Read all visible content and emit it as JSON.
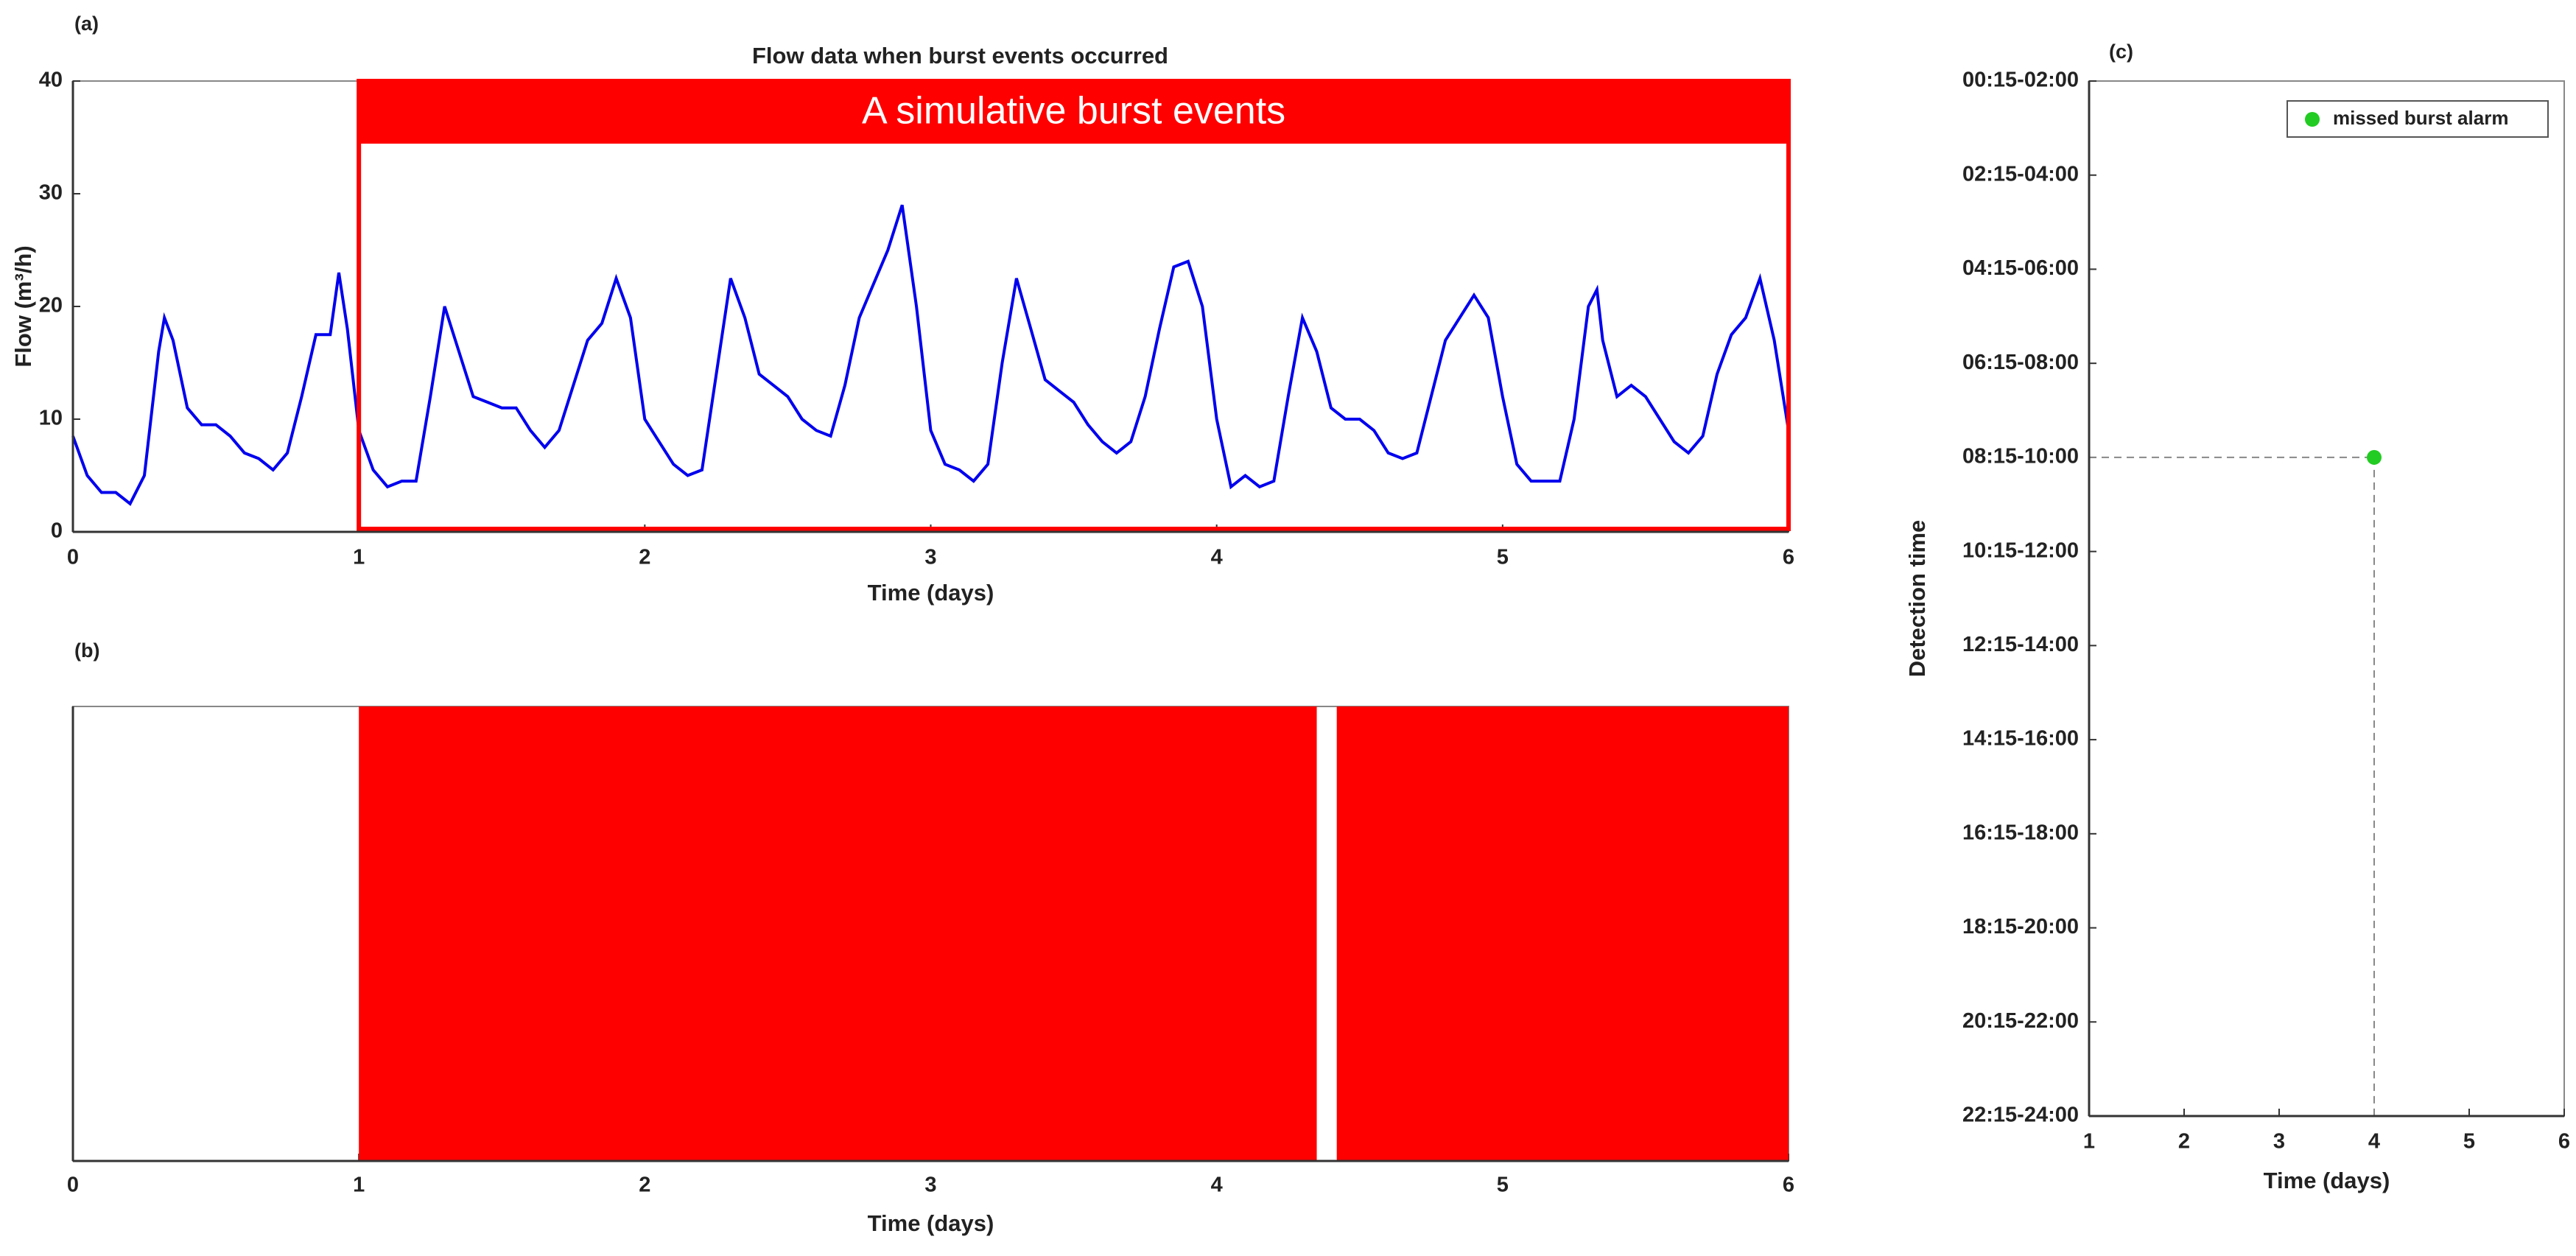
{
  "chart_data": [
    {
      "type": "line",
      "panel_label": "(a)",
      "title": "Flow data when burst events occurred",
      "x_label": "Time (days)",
      "y_label": "Flow (m³/h)",
      "color": "#0000ee",
      "x": [
        0,
        0.05,
        0.1,
        0.15,
        0.2,
        0.25,
        0.3,
        0.32,
        0.35,
        0.4,
        0.45,
        0.5,
        0.55,
        0.6,
        0.65,
        0.7,
        0.75,
        0.8,
        0.85,
        0.9,
        0.93,
        0.96,
        1.0,
        1.05,
        1.1,
        1.15,
        1.2,
        1.25,
        1.3,
        1.35,
        1.4,
        1.45,
        1.5,
        1.55,
        1.6,
        1.65,
        1.7,
        1.75,
        1.8,
        1.85,
        1.9,
        1.95,
        2.0,
        2.05,
        2.1,
        2.15,
        2.2,
        2.25,
        2.3,
        2.35,
        2.4,
        2.45,
        2.5,
        2.55,
        2.6,
        2.65,
        2.7,
        2.75,
        2.8,
        2.85,
        2.9,
        2.95,
        3.0,
        3.05,
        3.1,
        3.15,
        3.2,
        3.25,
        3.3,
        3.35,
        3.4,
        3.45,
        3.5,
        3.55,
        3.6,
        3.65,
        3.7,
        3.75,
        3.8,
        3.85,
        3.9,
        3.95,
        4.0,
        4.05,
        4.1,
        4.15,
        4.2,
        4.25,
        4.3,
        4.35,
        4.4,
        4.45,
        4.5,
        4.55,
        4.6,
        4.65,
        4.7,
        4.75,
        4.8,
        4.85,
        4.9,
        4.95,
        5.0,
        5.05,
        5.1,
        5.15,
        5.2,
        5.25,
        5.3,
        5.33,
        5.35,
        5.4,
        5.45,
        5.5,
        5.55,
        5.6,
        5.65,
        5.7,
        5.75,
        5.8,
        5.85,
        5.9,
        5.95,
        6.0
      ],
      "values": [
        8.5,
        5,
        3.5,
        3.5,
        2.5,
        5,
        16,
        19,
        17,
        11,
        9.5,
        9.5,
        8.5,
        7,
        6.5,
        5.5,
        7,
        12,
        17.5,
        17.5,
        23,
        18,
        9,
        5.5,
        4,
        4.5,
        4.5,
        12,
        20,
        16,
        12,
        11.5,
        11,
        11,
        9,
        7.5,
        9,
        13,
        17,
        18.5,
        22.5,
        19,
        10,
        8,
        6,
        5,
        5.5,
        14,
        22.5,
        19,
        14,
        13,
        12,
        10,
        9,
        8.5,
        13,
        19,
        22,
        25,
        29,
        20,
        9,
        6,
        5.5,
        4.5,
        6,
        15,
        22.5,
        18,
        13.5,
        12.5,
        11.5,
        9.5,
        8,
        7,
        8,
        12,
        18,
        23.5,
        24,
        20,
        10,
        4,
        5,
        4,
        4.5,
        12,
        19,
        16,
        11,
        10,
        10,
        9,
        7,
        6.5,
        7,
        12,
        17,
        19,
        21,
        19,
        12,
        6,
        4.5,
        4.5,
        4.5,
        10,
        20,
        21.5,
        17,
        12,
        13,
        12,
        10,
        8,
        7,
        8.5,
        14,
        17.5,
        19,
        22.5,
        17,
        9
      ],
      "xlim": [
        0,
        6
      ],
      "xticks": [
        0,
        1,
        2,
        3,
        4,
        5,
        6
      ],
      "ylim": [
        0,
        40
      ],
      "yticks": [
        0,
        10,
        20,
        30,
        40
      ],
      "highlight": {
        "label": "A simulative burst events",
        "x_range": [
          1,
          6
        ],
        "color": "#ff0000"
      }
    },
    {
      "type": "span",
      "panel_label": "(b)",
      "x_label": "Time (days)",
      "color": "#ff0000",
      "spans": [
        {
          "start": 1,
          "end": 4.35
        },
        {
          "start": 4.42,
          "end": 6
        }
      ],
      "xlim": [
        0,
        6
      ],
      "xticks": [
        0,
        1,
        2,
        3,
        4,
        5,
        6
      ]
    },
    {
      "type": "scatter",
      "panel_label": "(c)",
      "x_label": "Time (days)",
      "y_label": "Detection time",
      "y_categories": [
        "00:15-02:00",
        "02:15-04:00",
        "04:15-06:00",
        "06:15-08:00",
        "08:15-10:00",
        "10:15-12:00",
        "12:15-14:00",
        "14:15-16:00",
        "16:15-18:00",
        "18:15-20:00",
        "20:15-22:00",
        "22:15-24:00"
      ],
      "series": [
        {
          "name": "missed burst alarm",
          "color": "#22cc22",
          "x": [
            4
          ],
          "values": [
            "08:15-10:00"
          ]
        }
      ],
      "xlim": [
        1,
        6
      ],
      "xticks": [
        1,
        2,
        3,
        4,
        5,
        6
      ],
      "legend": "upper right"
    }
  ]
}
